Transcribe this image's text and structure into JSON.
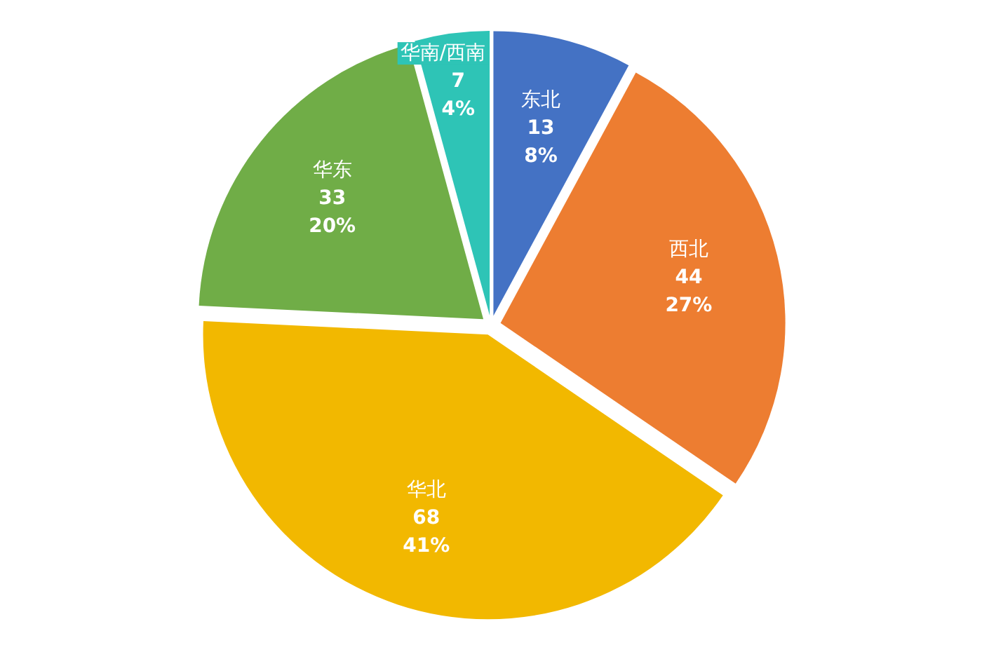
{
  "chart_data": {
    "type": "pie",
    "categories": [
      "东北",
      "西北",
      "华北",
      "华东",
      "华南/西南"
    ],
    "values": [
      13,
      44,
      68,
      33,
      7
    ],
    "colors": [
      "#4472c4",
      "#ed7d31",
      "#f2b800",
      "#70ad47",
      "#2ec4b6"
    ],
    "value_labels": [
      "13\n8%",
      "44\n27%",
      "68\n41%",
      "33\n20%",
      "7\n4%"
    ]
  }
}
